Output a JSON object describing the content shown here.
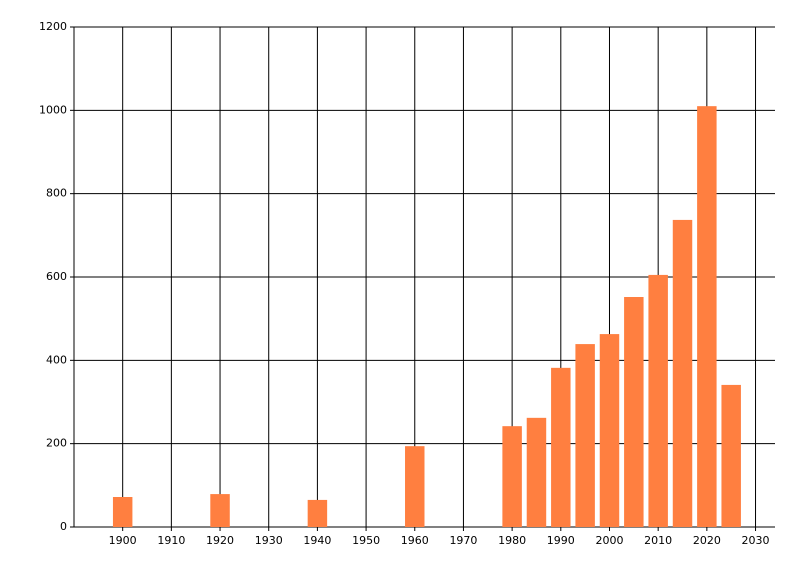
{
  "chart_data": {
    "type": "bar",
    "x": [
      1900,
      1920,
      1940,
      1960,
      1980,
      1985,
      1990,
      1995,
      2000,
      2005,
      2010,
      2015,
      2020,
      2025
    ],
    "values": [
      72,
      79,
      65,
      194,
      242,
      262,
      382,
      439,
      463,
      552,
      605,
      737,
      1010,
      341
    ],
    "color": "#ff7f40",
    "xlim": [
      1890,
      2034
    ],
    "xticks": [
      1900,
      1910,
      1920,
      1930,
      1940,
      1950,
      1960,
      1970,
      1980,
      1990,
      2000,
      2010,
      2020,
      2030
    ],
    "ylim": [
      0,
      1200
    ],
    "yticks": [
      0,
      200,
      400,
      600,
      800,
      1000,
      1200
    ],
    "grid": true
  }
}
